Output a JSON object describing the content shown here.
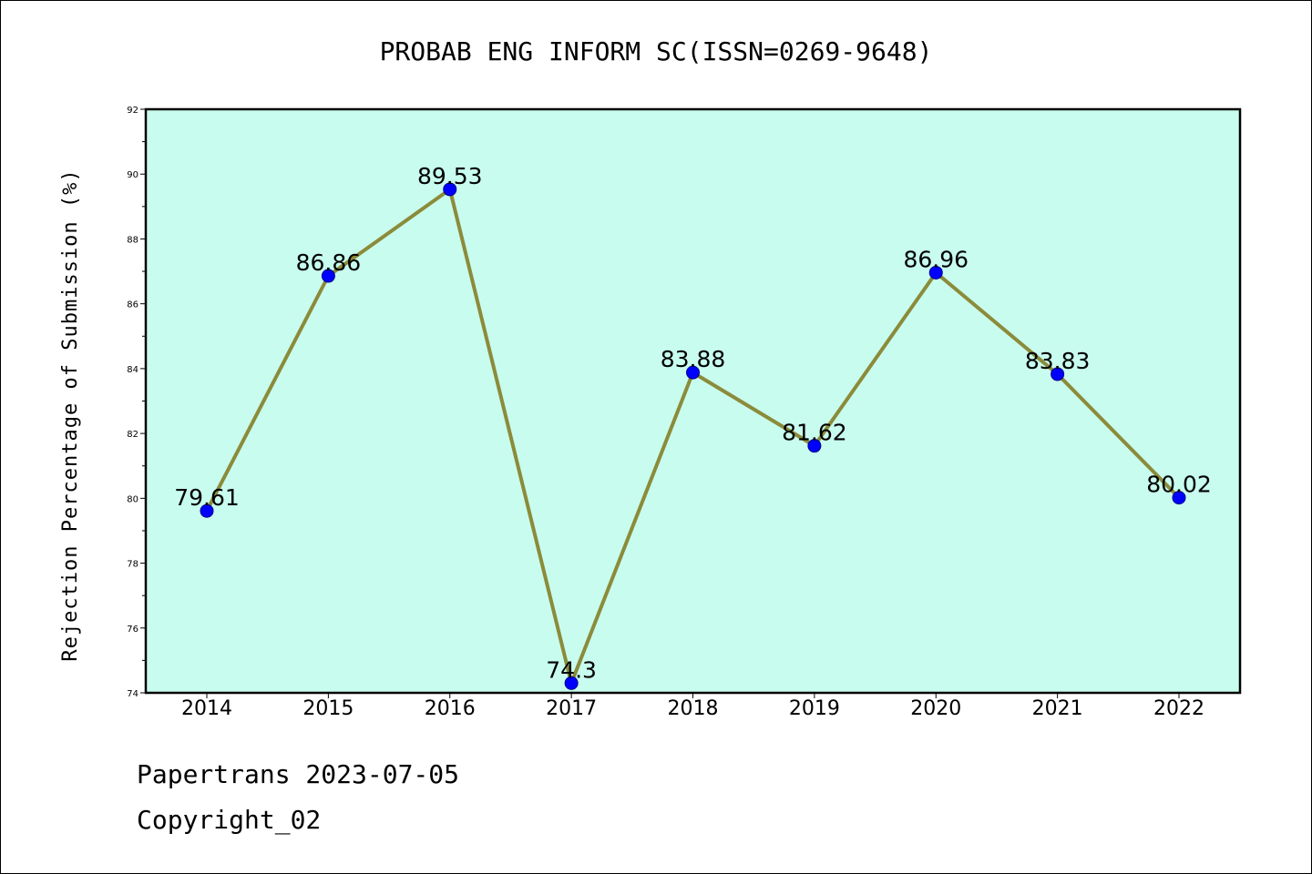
{
  "chart_data": {
    "type": "line",
    "title": "PROBAB ENG INFORM SC(ISSN=0269-9648)",
    "xlabel": "",
    "ylabel": "Rejection Percentage of Submission (%)",
    "categories": [
      "2014",
      "2015",
      "2016",
      "2017",
      "2018",
      "2019",
      "2020",
      "2021",
      "2022"
    ],
    "series": [
      {
        "values": [
          79.61,
          86.86,
          89.53,
          74.3,
          83.88,
          81.62,
          86.96,
          83.83,
          80.02
        ],
        "data_labels": [
          "79.61",
          "86.86",
          "89.53",
          "74.3",
          "83.88",
          "81.62",
          "86.96",
          "83.83",
          "80.02"
        ]
      }
    ],
    "ylim": [
      74,
      92
    ],
    "yticks": [
      74,
      76,
      78,
      80,
      82,
      84,
      86,
      88,
      90,
      92
    ],
    "grid": false,
    "legend": "none",
    "colors": {
      "plot_background": "#c8fcee",
      "line": "#8b8b3a",
      "marker": "#0000ff"
    }
  },
  "footer": {
    "line1": "Papertrans 2023-07-05",
    "line2": "Copyright_02"
  }
}
